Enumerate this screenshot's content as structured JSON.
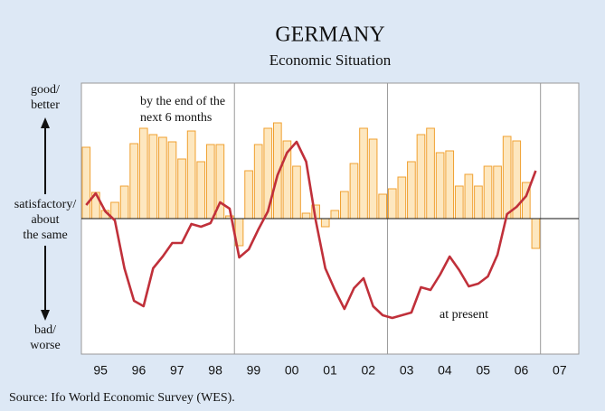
{
  "chart_data": {
    "type": "bar_line",
    "title": "GERMANY",
    "subtitle": "Economic Situation",
    "source": "Source: Ifo World Economic Survey (WES).",
    "annotations": {
      "bars_1": "by the end of the",
      "bars_2": "next 6 months",
      "line": "at present",
      "top_1": "good/",
      "top_2": "better",
      "mid_1": "satisfactory/",
      "mid_2": "about",
      "mid_3": "the same",
      "bot_1": "bad/",
      "bot_2": "worse"
    },
    "x": [
      1995.125,
      1995.375,
      1995.625,
      1995.875,
      1996.125,
      1996.375,
      1996.625,
      1996.875,
      1997.125,
      1997.375,
      1997.625,
      1997.875,
      1998.125,
      1998.375,
      1998.625,
      1998.875,
      1999.125,
      1999.375,
      1999.625,
      1999.875,
      2000.125,
      2000.375,
      2000.625,
      2000.875,
      2001.125,
      2001.375,
      2001.625,
      2001.875,
      2002.125,
      2002.375,
      2002.625,
      2002.875,
      2003.125,
      2003.375,
      2003.625,
      2003.875,
      2004.125,
      2004.375,
      2004.625,
      2004.875,
      2005.125,
      2005.375,
      2005.625,
      2005.875,
      2006.125,
      2006.375,
      2006.625,
      2006.875
    ],
    "series": [
      {
        "kind": "bar",
        "color": "#fde7bf",
        "stroke": "#f0a030",
        "values": [
          79,
          29,
          9,
          18,
          36,
          83,
          100,
          93,
          90,
          85,
          66,
          97,
          63,
          82,
          82,
          3,
          -30,
          53,
          82,
          100,
          106,
          86,
          58,
          6,
          15,
          -9,
          9,
          30,
          61,
          100,
          88,
          27,
          33,
          46,
          63,
          93,
          100,
          73,
          75,
          36,
          49,
          36,
          58,
          58,
          91,
          86,
          40,
          -33
        ]
      },
      {
        "kind": "line",
        "color": "#c0303a",
        "values": [
          15,
          28,
          8,
          -2,
          -55,
          -91,
          -97,
          -55,
          -42,
          -27,
          -27,
          -6,
          -9,
          -5,
          18,
          11,
          -43,
          -34,
          -12,
          8,
          48,
          73,
          85,
          63,
          -2,
          -55,
          -79,
          -100,
          -77,
          -66,
          -97,
          -107,
          -110,
          -107,
          -104,
          -76,
          -79,
          -62,
          -42,
          -57,
          -75,
          -72,
          -64,
          -40,
          5,
          13,
          25,
          53
        ]
      }
    ],
    "xlim": [
      1995,
      2008
    ],
    "ylim": [
      -150,
      150
    ],
    "xticks": [
      {
        "value": 1995.5,
        "label": "95"
      },
      {
        "value": 1996.5,
        "label": "96"
      },
      {
        "value": 1997.5,
        "label": "97"
      },
      {
        "value": 1998.5,
        "label": "98"
      },
      {
        "value": 1999.5,
        "label": "99"
      },
      {
        "value": 2000.5,
        "label": "00"
      },
      {
        "value": 2001.5,
        "label": "01"
      },
      {
        "value": 2002.5,
        "label": "02"
      },
      {
        "value": 2003.5,
        "label": "03"
      },
      {
        "value": 2004.5,
        "label": "04"
      },
      {
        "value": 2005.5,
        "label": "05"
      },
      {
        "value": 2006.5,
        "label": "06"
      },
      {
        "value": 2007.5,
        "label": "07"
      }
    ],
    "vlines": [
      1999,
      2003,
      2007
    ]
  }
}
